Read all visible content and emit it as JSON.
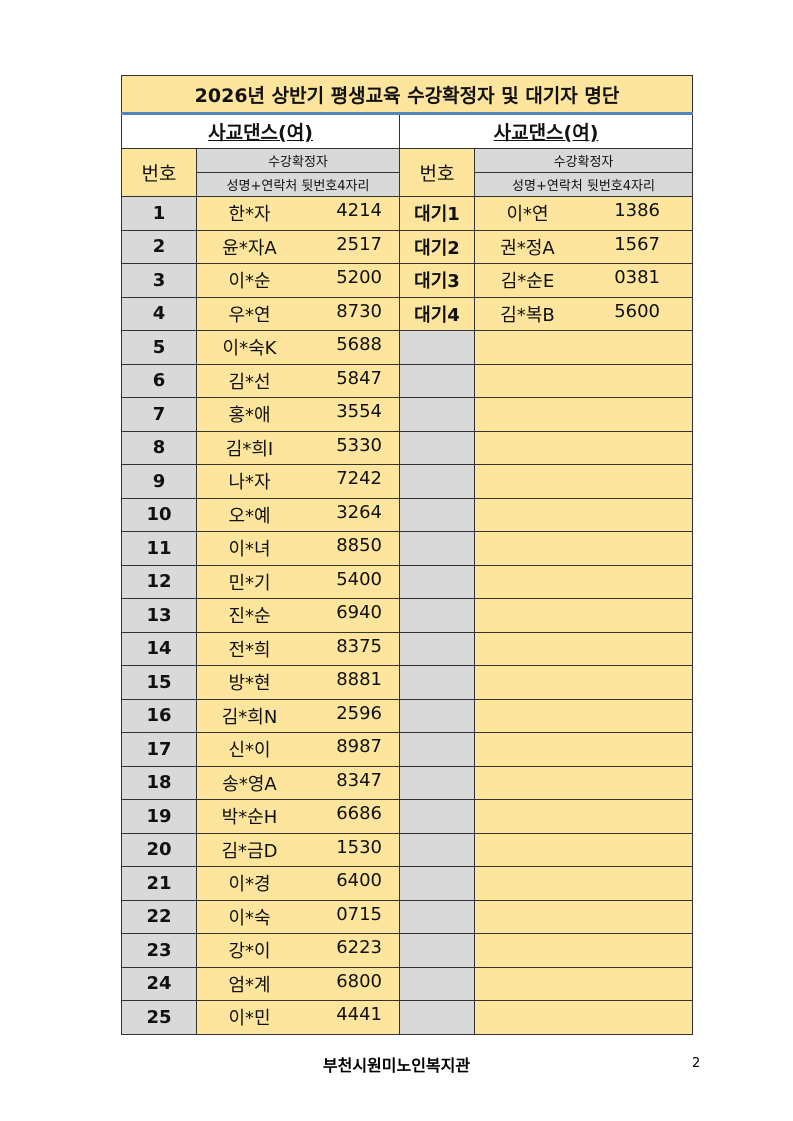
{
  "title": "2026년 상반기 평생교육 수강확정자 및 대기자 명단",
  "left": {
    "section": "사교댄스(여)",
    "num_header": "번호",
    "header1": "수강확정자",
    "header2": "성명+연락처 뒷번호4자리"
  },
  "right": {
    "section": "사교댄스(여)",
    "num_header": "번호",
    "header1": "수강확정자",
    "header2": "성명+연락처 뒷번호4자리"
  },
  "confirmed": [
    {
      "no": "1",
      "name": "한*자",
      "phone": "4214"
    },
    {
      "no": "2",
      "name": "윤*자A",
      "phone": "2517"
    },
    {
      "no": "3",
      "name": "이*순",
      "phone": "5200"
    },
    {
      "no": "4",
      "name": "우*연",
      "phone": "8730"
    },
    {
      "no": "5",
      "name": "이*숙K",
      "phone": "5688"
    },
    {
      "no": "6",
      "name": "김*선",
      "phone": "5847"
    },
    {
      "no": "7",
      "name": "홍*애",
      "phone": "3554"
    },
    {
      "no": "8",
      "name": "김*희I",
      "phone": "5330"
    },
    {
      "no": "9",
      "name": "나*자",
      "phone": "7242"
    },
    {
      "no": "10",
      "name": "오*예",
      "phone": "3264"
    },
    {
      "no": "11",
      "name": "이*녀",
      "phone": "8850"
    },
    {
      "no": "12",
      "name": "민*기",
      "phone": "5400"
    },
    {
      "no": "13",
      "name": "진*순",
      "phone": "6940"
    },
    {
      "no": "14",
      "name": "전*희",
      "phone": "8375"
    },
    {
      "no": "15",
      "name": "방*현",
      "phone": "8881"
    },
    {
      "no": "16",
      "name": "김*희N",
      "phone": "2596"
    },
    {
      "no": "17",
      "name": "신*이",
      "phone": "8987"
    },
    {
      "no": "18",
      "name": "송*영A",
      "phone": "8347"
    },
    {
      "no": "19",
      "name": "박*순H",
      "phone": "6686"
    },
    {
      "no": "20",
      "name": "김*금D",
      "phone": "1530"
    },
    {
      "no": "21",
      "name": "이*경",
      "phone": "6400"
    },
    {
      "no": "22",
      "name": "이*숙",
      "phone": "0715"
    },
    {
      "no": "23",
      "name": "강*이",
      "phone": "6223"
    },
    {
      "no": "24",
      "name": "엄*계",
      "phone": "6800"
    },
    {
      "no": "25",
      "name": "이*민",
      "phone": "4441"
    }
  ],
  "waiting": [
    {
      "no": "대기1",
      "name": "이*연",
      "phone": "1386"
    },
    {
      "no": "대기2",
      "name": "권*정A",
      "phone": "1567"
    },
    {
      "no": "대기3",
      "name": "김*순E",
      "phone": "0381"
    },
    {
      "no": "대기4",
      "name": "김*복B",
      "phone": "5600"
    }
  ],
  "footer": "부천시원미노인복지관",
  "page_number": "2"
}
